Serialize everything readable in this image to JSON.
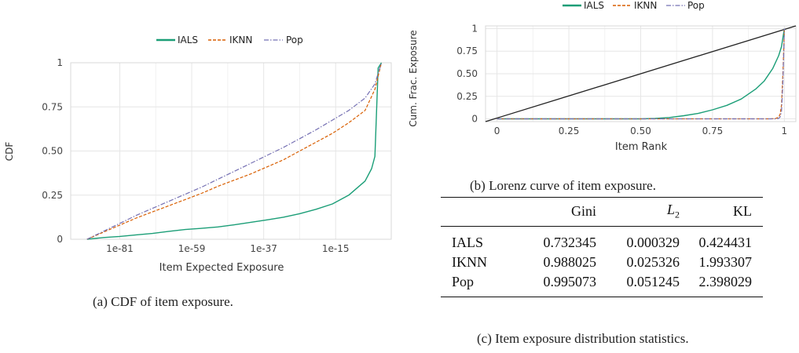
{
  "colors": {
    "IALS": "#1b9e77",
    "IKNN": "#d95f02",
    "Pop": "#7570b3",
    "diagonal": "#222222"
  },
  "chart_data": [
    {
      "type": "line",
      "xlabel": "Item Expected Exposure",
      "ylabel": "CDF",
      "xscale": "log10",
      "xticks": [
        -81,
        -59,
        -37,
        -15
      ],
      "xtick_labels": [
        "1e-81",
        "1e-59",
        "1e-37",
        "1e-15"
      ],
      "xlim": [
        -96,
        2
      ],
      "yticks": [
        0,
        0.25,
        0.5,
        0.75,
        1
      ],
      "ytick_labels": [
        "0",
        "0.25",
        "0.50",
        "0.75",
        "1"
      ],
      "ylim": [
        0,
        1
      ],
      "grid": true,
      "legend": "top-center",
      "series": [
        {
          "name": "IALS",
          "style": "solid",
          "x": [
            -91,
            -86,
            -81,
            -76,
            -71,
            -66,
            -61,
            -56,
            -51,
            -46,
            -41,
            -36,
            -31,
            -26,
            -21,
            -16,
            -11,
            -6,
            -4,
            -3,
            -2,
            -1
          ],
          "y": [
            0,
            0.01,
            0.016,
            0.025,
            0.033,
            0.045,
            0.055,
            0.062,
            0.07,
            0.082,
            0.096,
            0.11,
            0.125,
            0.145,
            0.17,
            0.2,
            0.25,
            0.33,
            0.4,
            0.47,
            0.97,
            1
          ]
        },
        {
          "name": "IKNN",
          "style": "dashed",
          "x": [
            -91,
            -86,
            -81,
            -76,
            -71,
            -66,
            -61,
            -56,
            -51,
            -46,
            -41,
            -36,
            -31,
            -26,
            -21,
            -16,
            -11,
            -6,
            -3,
            -1
          ],
          "y": [
            0,
            0.04,
            0.08,
            0.12,
            0.155,
            0.19,
            0.225,
            0.26,
            0.3,
            0.335,
            0.37,
            0.41,
            0.45,
            0.5,
            0.55,
            0.6,
            0.66,
            0.73,
            0.85,
            1
          ]
        },
        {
          "name": "Pop",
          "style": "dashdot",
          "x": [
            -91,
            -86,
            -81,
            -76,
            -71,
            -66,
            -61,
            -56,
            -51,
            -46,
            -41,
            -36,
            -31,
            -26,
            -21,
            -16,
            -11,
            -6,
            -3,
            -1
          ],
          "y": [
            0,
            0.045,
            0.09,
            0.135,
            0.175,
            0.215,
            0.255,
            0.295,
            0.34,
            0.385,
            0.43,
            0.475,
            0.52,
            0.57,
            0.62,
            0.675,
            0.73,
            0.8,
            0.88,
            1
          ]
        }
      ],
      "caption": "(a) CDF of item exposure."
    },
    {
      "type": "line",
      "xlabel": "Item Rank",
      "ylabel": "Cum. Frac. Exposure",
      "xticks": [
        0,
        0.25,
        0.5,
        0.75,
        1
      ],
      "xtick_labels": [
        "0",
        "0.25",
        "0.50",
        "0.75",
        "1"
      ],
      "xlim": [
        -0.04,
        1.04
      ],
      "yticks": [
        0,
        0.25,
        0.5,
        0.75,
        1
      ],
      "ytick_labels": [
        "0",
        "0.25",
        "0.50",
        "0.75",
        "1"
      ],
      "ylim": [
        -0.03,
        1.03
      ],
      "grid": true,
      "legend": "top-center",
      "diagonal": [
        [
          -0.04,
          -0.03
        ],
        [
          1.04,
          1.03
        ]
      ],
      "series": [
        {
          "name": "IALS",
          "style": "solid",
          "x": [
            0,
            0.5,
            0.55,
            0.6,
            0.65,
            0.7,
            0.75,
            0.8,
            0.85,
            0.9,
            0.93,
            0.96,
            0.98,
            0.99,
            1
          ],
          "y": [
            0,
            0,
            0.005,
            0.015,
            0.035,
            0.06,
            0.1,
            0.15,
            0.22,
            0.33,
            0.42,
            0.56,
            0.7,
            0.8,
            1
          ]
        },
        {
          "name": "IKNN",
          "style": "dashed",
          "x": [
            0,
            0.95,
            0.97,
            0.98,
            0.985,
            0.99,
            0.995,
            1
          ],
          "y": [
            0,
            0,
            0.005,
            0.02,
            0.05,
            0.15,
            0.5,
            1
          ]
        },
        {
          "name": "Pop",
          "style": "dashdot",
          "x": [
            0,
            0.97,
            0.98,
            0.985,
            0.99,
            0.995,
            1
          ],
          "y": [
            0,
            0,
            0.005,
            0.02,
            0.08,
            0.4,
            1
          ]
        }
      ],
      "caption": "(b) Lorenz curve of item exposure."
    }
  ],
  "stats_table": {
    "headers": [
      "",
      "Gini",
      "L2",
      "KL"
    ],
    "rows": [
      [
        "IALS",
        "0.732345",
        "0.000329",
        "0.424431"
      ],
      [
        "IKNN",
        "0.988025",
        "0.025326",
        "1.993307"
      ],
      [
        "Pop",
        "0.995073",
        "0.051245",
        "2.398029"
      ]
    ],
    "caption": "(c) Item exposure distribution statistics."
  }
}
